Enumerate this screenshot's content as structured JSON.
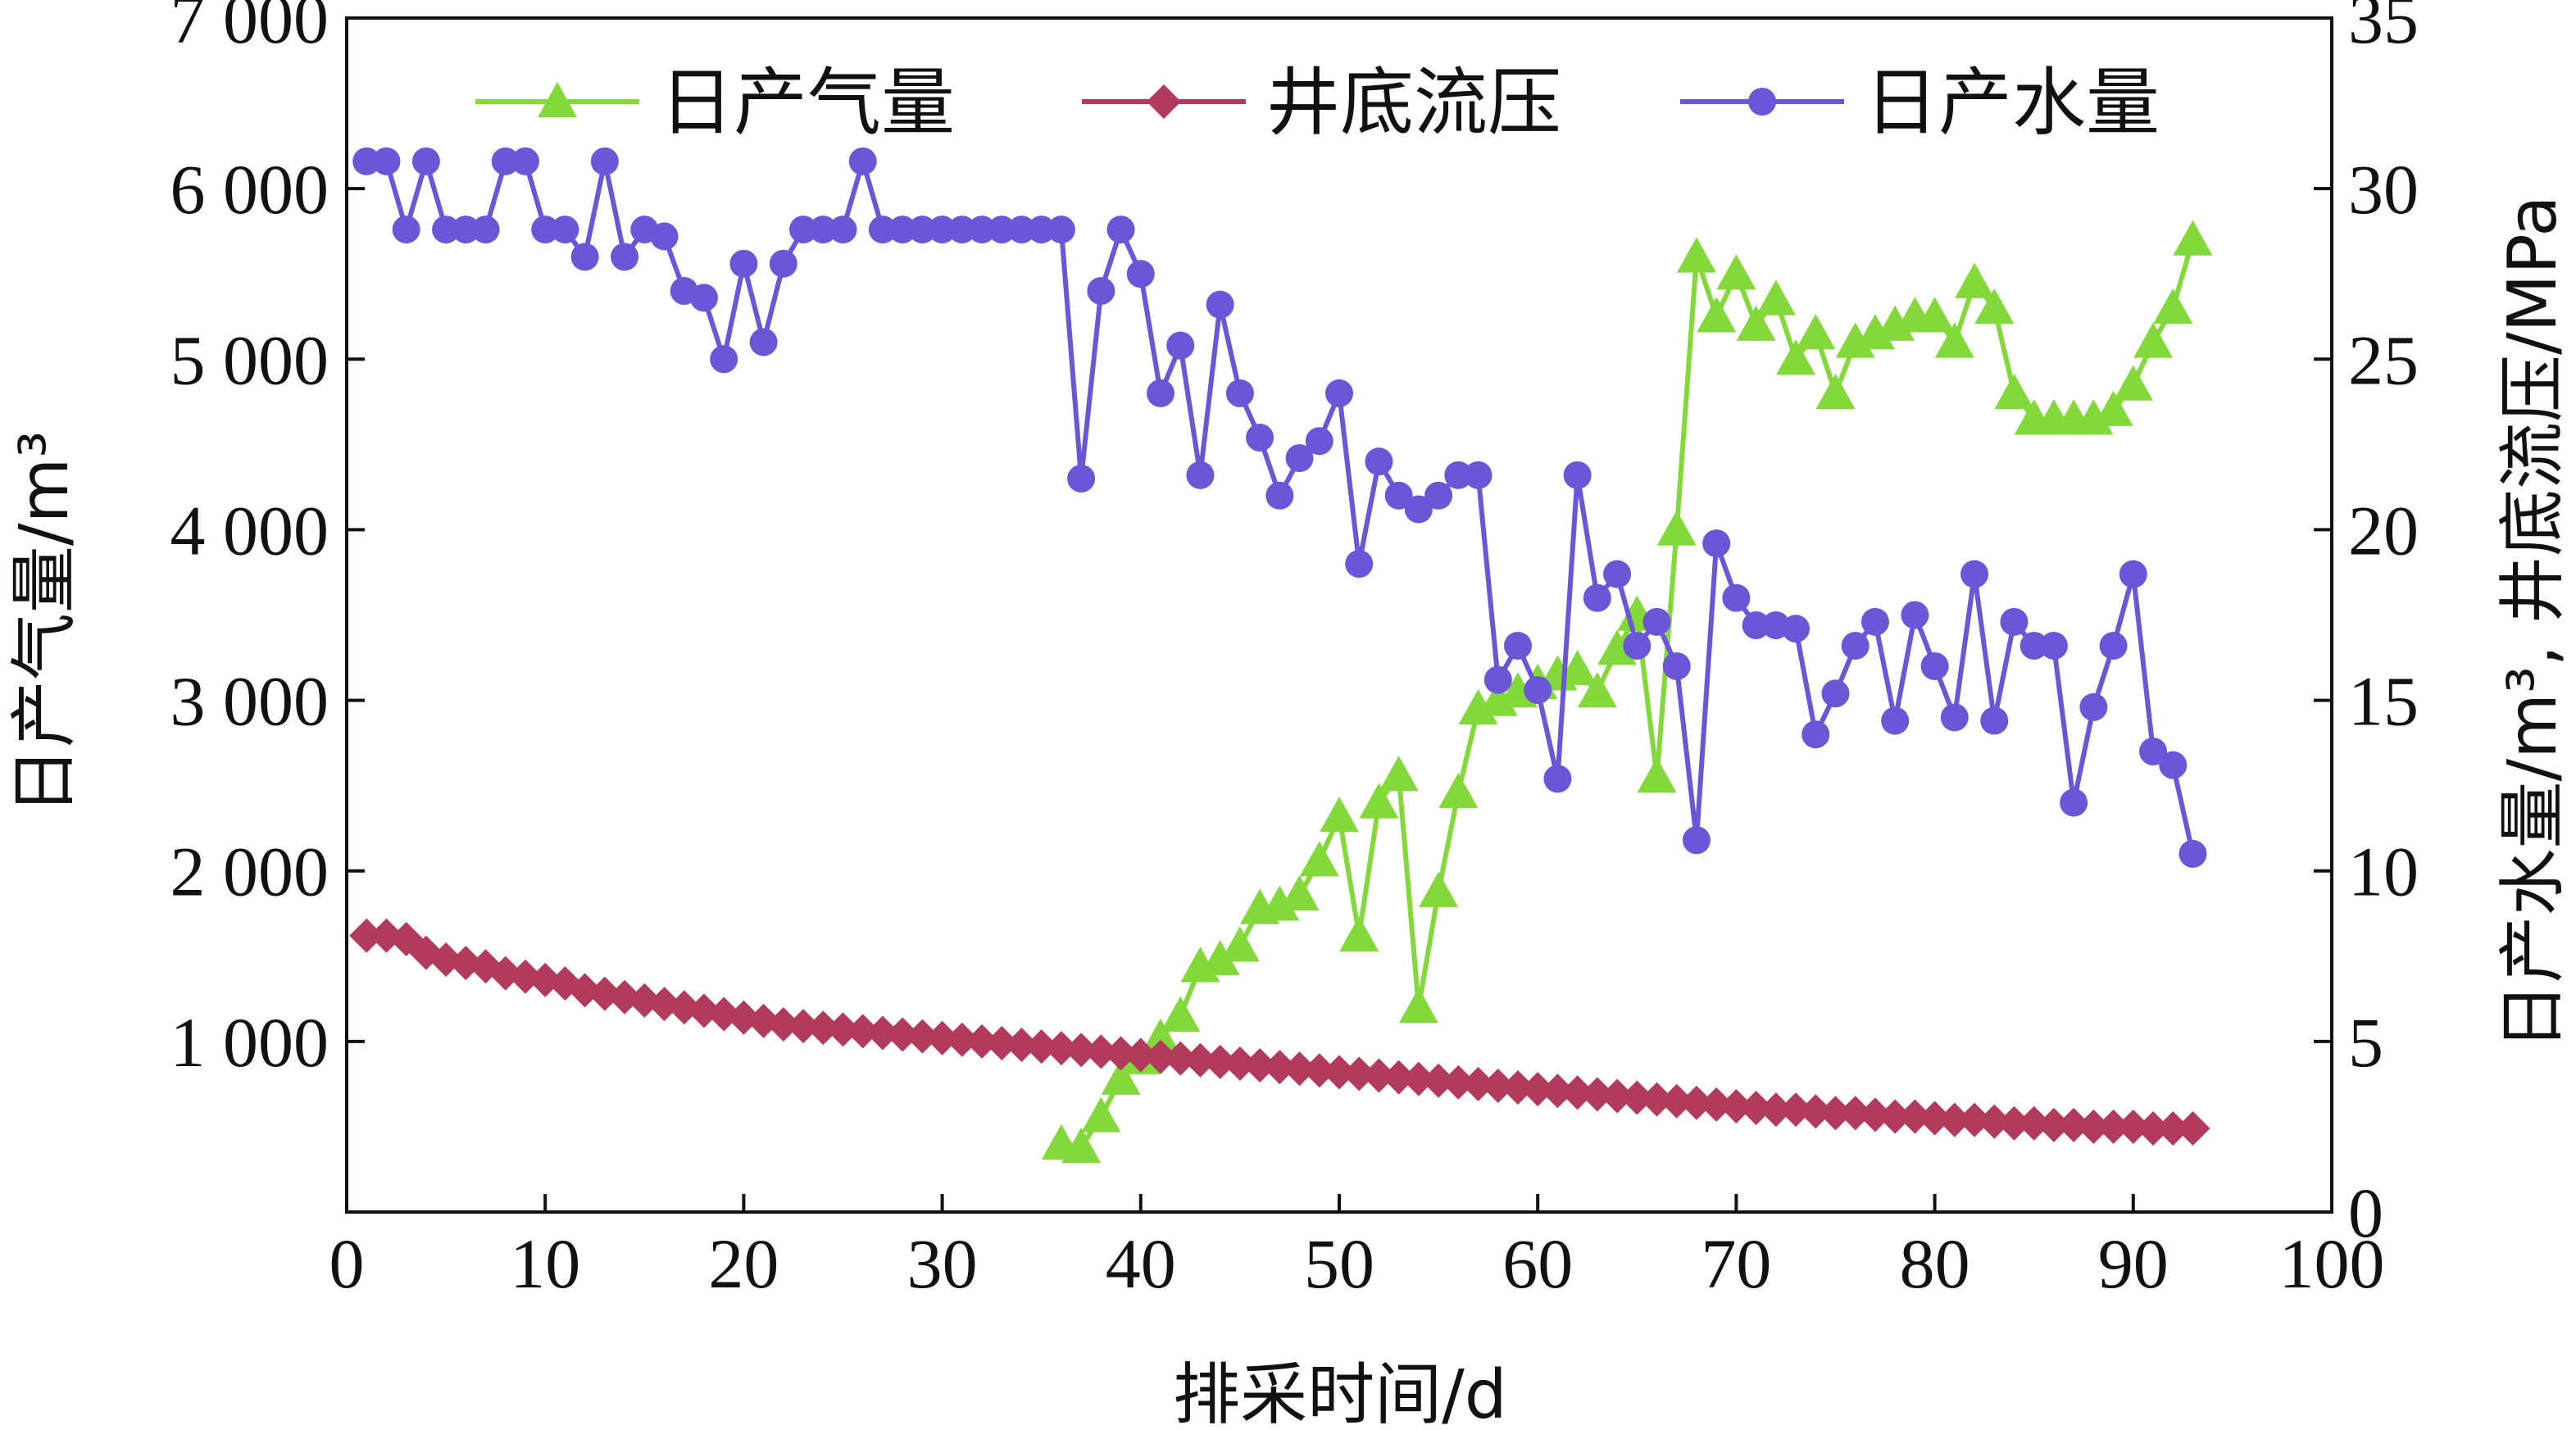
{
  "chart_data": {
    "type": "line",
    "xlabel": "排采时间/d",
    "ylabel_left": "日产气量/m³",
    "ylabel_right": "日产水量/m³, 井底流压/MPa",
    "xlim": [
      0,
      100
    ],
    "ylim_left": [
      0,
      7000
    ],
    "ylim_right": [
      0,
      35
    ],
    "x_ticks": [
      0,
      10,
      20,
      30,
      40,
      50,
      60,
      70,
      80,
      90,
      100
    ],
    "x_tick_labels": [
      "0",
      "10",
      "20",
      "30",
      "40",
      "50",
      "60",
      "70",
      "80",
      "90",
      "100"
    ],
    "y_left_ticks": [
      1000,
      2000,
      3000,
      4000,
      5000,
      6000,
      7000
    ],
    "y_left_tick_labels": [
      "1 000",
      "2 000",
      "3 000",
      "4 000",
      "5 000",
      "6 000",
      "7 000"
    ],
    "y_right_ticks": [
      0,
      5,
      10,
      15,
      20,
      25,
      30,
      35
    ],
    "y_right_tick_labels": [
      "0",
      "5",
      "10",
      "15",
      "20",
      "25",
      "30",
      "35"
    ],
    "grid": false,
    "legend_position": "top",
    "series": [
      {
        "name": "日产气量",
        "axis": "left",
        "marker": "triangle",
        "color": "#84d93a",
        "points": [
          [
            36,
            400
          ],
          [
            37,
            380
          ],
          [
            38,
            560
          ],
          [
            39,
            780
          ],
          [
            40,
            900
          ],
          [
            41,
            1020
          ],
          [
            42,
            1150
          ],
          [
            43,
            1440
          ],
          [
            44,
            1480
          ],
          [
            45,
            1560
          ],
          [
            46,
            1780
          ],
          [
            47,
            1800
          ],
          [
            48,
            1860
          ],
          [
            49,
            2060
          ],
          [
            50,
            2320
          ],
          [
            51,
            1620
          ],
          [
            52,
            2400
          ],
          [
            53,
            2560
          ],
          [
            54,
            1200
          ],
          [
            55,
            1880
          ],
          [
            56,
            2460
          ],
          [
            57,
            2950
          ],
          [
            58,
            3000
          ],
          [
            59,
            3050
          ],
          [
            60,
            3100
          ],
          [
            61,
            3150
          ],
          [
            62,
            3180
          ],
          [
            63,
            3050
          ],
          [
            64,
            3300
          ],
          [
            65,
            3500
          ],
          [
            66,
            2550
          ],
          [
            67,
            4000
          ],
          [
            68,
            5600
          ],
          [
            69,
            5250
          ],
          [
            70,
            5500
          ],
          [
            71,
            5200
          ],
          [
            72,
            5350
          ],
          [
            73,
            5000
          ],
          [
            74,
            5150
          ],
          [
            75,
            4800
          ],
          [
            76,
            5100
          ],
          [
            77,
            5150
          ],
          [
            78,
            5200
          ],
          [
            79,
            5250
          ],
          [
            80,
            5250
          ],
          [
            81,
            5100
          ],
          [
            82,
            5450
          ],
          [
            83,
            5300
          ],
          [
            84,
            4800
          ],
          [
            85,
            4650
          ],
          [
            86,
            4650
          ],
          [
            87,
            4650
          ],
          [
            88,
            4650
          ],
          [
            89,
            4700
          ],
          [
            90,
            4850
          ],
          [
            91,
            5100
          ],
          [
            92,
            5300
          ],
          [
            93,
            5700
          ]
        ]
      },
      {
        "name": "井底流压",
        "axis": "right",
        "marker": "diamond",
        "color": "#b23a5c",
        "points": [
          [
            1,
            8.1
          ],
          [
            2,
            8.1
          ],
          [
            3,
            8.0
          ],
          [
            4,
            7.6
          ],
          [
            5,
            7.4
          ],
          [
            6,
            7.3
          ],
          [
            7,
            7.2
          ],
          [
            8,
            7.0
          ],
          [
            9,
            6.9
          ],
          [
            10,
            6.8
          ],
          [
            11,
            6.7
          ],
          [
            12,
            6.5
          ],
          [
            13,
            6.4
          ],
          [
            14,
            6.3
          ],
          [
            15,
            6.2
          ],
          [
            16,
            6.1
          ],
          [
            17,
            6.0
          ],
          [
            18,
            5.9
          ],
          [
            19,
            5.8
          ],
          [
            20,
            5.7
          ],
          [
            21,
            5.6
          ],
          [
            22,
            5.5
          ],
          [
            23,
            5.45
          ],
          [
            24,
            5.4
          ],
          [
            25,
            5.35
          ],
          [
            26,
            5.3
          ],
          [
            27,
            5.25
          ],
          [
            28,
            5.2
          ],
          [
            29,
            5.15
          ],
          [
            30,
            5.1
          ],
          [
            31,
            5.05
          ],
          [
            32,
            5.0
          ],
          [
            33,
            4.95
          ],
          [
            34,
            4.9
          ],
          [
            35,
            4.85
          ],
          [
            36,
            4.8
          ],
          [
            37,
            4.75
          ],
          [
            38,
            4.7
          ],
          [
            39,
            4.65
          ],
          [
            40,
            4.6
          ],
          [
            41,
            4.55
          ],
          [
            42,
            4.5
          ],
          [
            43,
            4.45
          ],
          [
            44,
            4.4
          ],
          [
            45,
            4.35
          ],
          [
            46,
            4.3
          ],
          [
            47,
            4.25
          ],
          [
            48,
            4.2
          ],
          [
            49,
            4.15
          ],
          [
            50,
            4.1
          ],
          [
            51,
            4.05
          ],
          [
            52,
            4.0
          ],
          [
            53,
            3.95
          ],
          [
            54,
            3.9
          ],
          [
            55,
            3.85
          ],
          [
            56,
            3.8
          ],
          [
            57,
            3.75
          ],
          [
            58,
            3.7
          ],
          [
            59,
            3.65
          ],
          [
            60,
            3.6
          ],
          [
            61,
            3.55
          ],
          [
            62,
            3.5
          ],
          [
            63,
            3.45
          ],
          [
            64,
            3.4
          ],
          [
            65,
            3.35
          ],
          [
            66,
            3.3
          ],
          [
            67,
            3.25
          ],
          [
            68,
            3.2
          ],
          [
            69,
            3.15
          ],
          [
            70,
            3.1
          ],
          [
            71,
            3.05
          ],
          [
            72,
            3.0
          ],
          [
            73,
            3.0
          ],
          [
            74,
            2.95
          ],
          [
            75,
            2.9
          ],
          [
            76,
            2.9
          ],
          [
            77,
            2.85
          ],
          [
            78,
            2.8
          ],
          [
            79,
            2.8
          ],
          [
            80,
            2.75
          ],
          [
            81,
            2.7
          ],
          [
            82,
            2.7
          ],
          [
            83,
            2.65
          ],
          [
            84,
            2.6
          ],
          [
            85,
            2.6
          ],
          [
            86,
            2.55
          ],
          [
            87,
            2.55
          ],
          [
            88,
            2.5
          ],
          [
            89,
            2.5
          ],
          [
            90,
            2.5
          ],
          [
            91,
            2.45
          ],
          [
            92,
            2.45
          ],
          [
            93,
            2.45
          ]
        ]
      },
      {
        "name": "日产水量",
        "axis": "right",
        "marker": "circle",
        "color": "#6a56d6",
        "points": [
          [
            1,
            30.8
          ],
          [
            2,
            30.8
          ],
          [
            3,
            28.8
          ],
          [
            4,
            30.8
          ],
          [
            5,
            28.8
          ],
          [
            6,
            28.8
          ],
          [
            7,
            28.8
          ],
          [
            8,
            30.8
          ],
          [
            9,
            30.8
          ],
          [
            10,
            28.8
          ],
          [
            11,
            28.8
          ],
          [
            12,
            28.0
          ],
          [
            13,
            30.8
          ],
          [
            14,
            28.0
          ],
          [
            15,
            28.8
          ],
          [
            16,
            28.6
          ],
          [
            17,
            27.0
          ],
          [
            18,
            26.8
          ],
          [
            19,
            25.0
          ],
          [
            20,
            27.8
          ],
          [
            21,
            25.5
          ],
          [
            22,
            27.8
          ],
          [
            23,
            28.8
          ],
          [
            24,
            28.8
          ],
          [
            25,
            28.8
          ],
          [
            26,
            30.8
          ],
          [
            27,
            28.8
          ],
          [
            28,
            28.8
          ],
          [
            29,
            28.8
          ],
          [
            30,
            28.8
          ],
          [
            31,
            28.8
          ],
          [
            32,
            28.8
          ],
          [
            33,
            28.8
          ],
          [
            34,
            28.8
          ],
          [
            35,
            28.8
          ],
          [
            36,
            28.8
          ],
          [
            37,
            21.5
          ],
          [
            38,
            27.0
          ],
          [
            39,
            28.8
          ],
          [
            40,
            27.5
          ],
          [
            41,
            24.0
          ],
          [
            42,
            25.4
          ],
          [
            43,
            21.6
          ],
          [
            44,
            26.6
          ],
          [
            45,
            24.0
          ],
          [
            46,
            22.7
          ],
          [
            47,
            21.0
          ],
          [
            48,
            22.1
          ],
          [
            49,
            22.6
          ],
          [
            50,
            24.0
          ],
          [
            51,
            19.0
          ],
          [
            52,
            22.0
          ],
          [
            53,
            21.0
          ],
          [
            54,
            20.6
          ],
          [
            55,
            21.0
          ],
          [
            56,
            21.6
          ],
          [
            57,
            21.6
          ],
          [
            58,
            15.6
          ],
          [
            59,
            16.6
          ],
          [
            60,
            15.3
          ],
          [
            61,
            12.7
          ],
          [
            62,
            21.6
          ],
          [
            63,
            18.0
          ],
          [
            64,
            18.7
          ],
          [
            65,
            16.6
          ],
          [
            66,
            17.3
          ],
          [
            67,
            16.0
          ],
          [
            68,
            10.9
          ],
          [
            69,
            19.6
          ],
          [
            70,
            18.0
          ],
          [
            71,
            17.2
          ],
          [
            72,
            17.2
          ],
          [
            73,
            17.1
          ],
          [
            74,
            14.0
          ],
          [
            75,
            15.2
          ],
          [
            76,
            16.6
          ],
          [
            77,
            17.3
          ],
          [
            78,
            14.4
          ],
          [
            79,
            17.5
          ],
          [
            80,
            16.0
          ],
          [
            81,
            14.5
          ],
          [
            82,
            18.7
          ],
          [
            83,
            14.4
          ],
          [
            84,
            17.3
          ],
          [
            85,
            16.6
          ],
          [
            86,
            16.6
          ],
          [
            87,
            12.0
          ],
          [
            88,
            14.8
          ],
          [
            89,
            16.6
          ],
          [
            90,
            18.7
          ],
          [
            91,
            13.5
          ],
          [
            92,
            13.1
          ],
          [
            93,
            10.5
          ]
        ]
      }
    ]
  }
}
